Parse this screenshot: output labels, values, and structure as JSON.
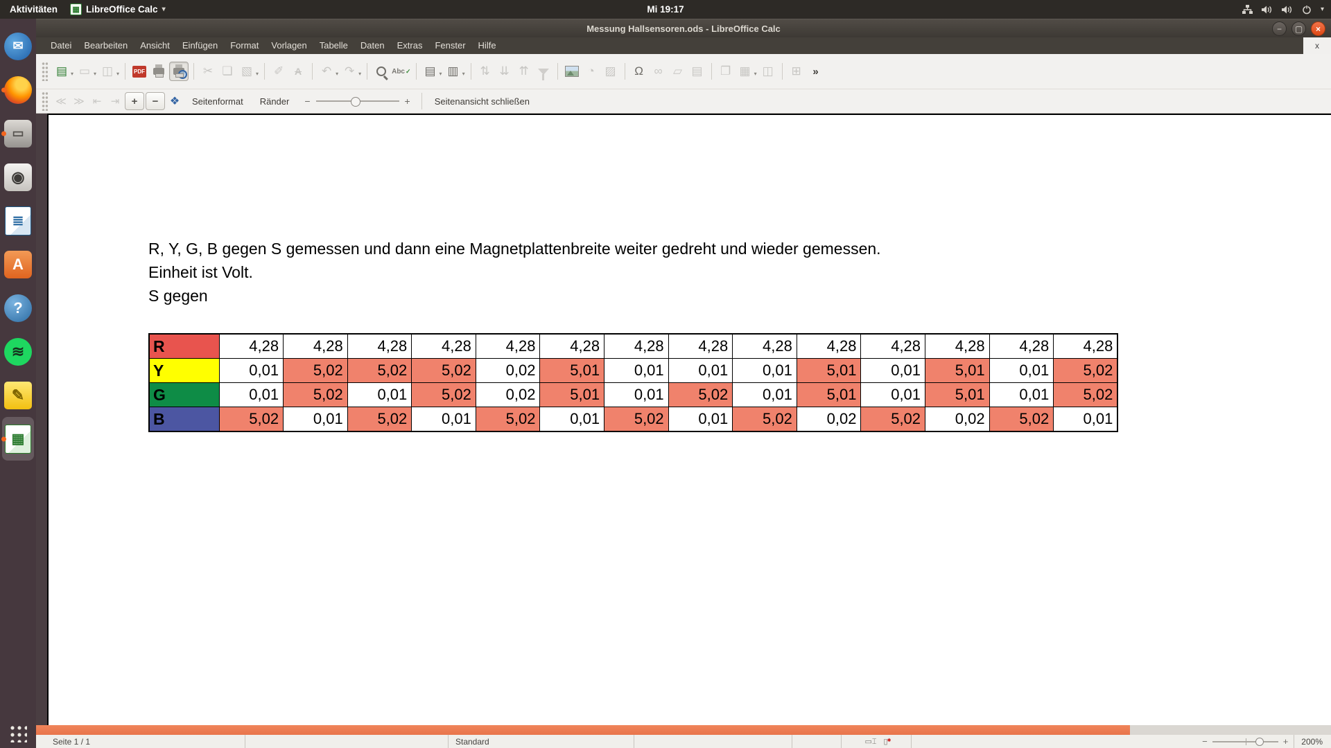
{
  "top_bar": {
    "activities": "Aktivitäten",
    "app_menu": "LibreOffice Calc",
    "clock": "Mi 19:17",
    "tray_icons": [
      "network-icon",
      "volume-icon",
      "volume-icon",
      "power-icon",
      "chevron-down-icon"
    ]
  },
  "window": {
    "title": "Messung Hallsensoren.ods - LibreOffice Calc",
    "controls": {
      "minimize": "−",
      "maximize": "",
      "close": "×"
    }
  },
  "menu_bar": {
    "items": [
      "Datei",
      "Bearbeiten",
      "Ansicht",
      "Einfügen",
      "Format",
      "Vorlagen",
      "Tabelle",
      "Daten",
      "Extras",
      "Fenster",
      "Hilfe"
    ],
    "close_label": "x"
  },
  "toolbar": {
    "icons": [
      {
        "name": "new-document",
        "glyph": "▤",
        "cls": "gi-green",
        "enabled": true,
        "caret": true
      },
      {
        "name": "open-document",
        "glyph": "▭",
        "enabled": false,
        "caret": true
      },
      {
        "name": "save-document",
        "glyph": "◫",
        "enabled": false,
        "caret": true
      },
      {
        "sep": true
      },
      {
        "name": "export-pdf",
        "glyph": "PDF",
        "cls": "gi-pdf",
        "enabled": true
      },
      {
        "name": "print",
        "shape": "printer",
        "enabled": true
      },
      {
        "name": "print-preview",
        "shape": "printer-lens",
        "enabled": true,
        "active": true
      },
      {
        "sep": true
      },
      {
        "name": "cut",
        "glyph": "✂",
        "enabled": false
      },
      {
        "name": "copy",
        "glyph": "❏",
        "enabled": false
      },
      {
        "name": "paste",
        "glyph": "▧",
        "enabled": false,
        "caret": true
      },
      {
        "sep": true
      },
      {
        "name": "clone-formatting",
        "glyph": "✐",
        "enabled": false
      },
      {
        "name": "clear-formatting",
        "glyph": "A",
        "cls": "gi-clearfmt",
        "enabled": false
      },
      {
        "sep": true
      },
      {
        "name": "undo",
        "glyph": "↶",
        "enabled": false,
        "caret": true
      },
      {
        "name": "redo",
        "glyph": "↷",
        "enabled": false,
        "caret": true
      },
      {
        "sep": true
      },
      {
        "name": "find-replace",
        "shape": "magnifier",
        "enabled": true
      },
      {
        "name": "spelling",
        "glyph": "Abc",
        "cls": "gi-abc",
        "enabled": true
      },
      {
        "sep": true
      },
      {
        "name": "insert-row",
        "glyph": "▤",
        "enabled": true,
        "caret": true
      },
      {
        "name": "insert-column",
        "glyph": "▥",
        "enabled": true,
        "caret": true
      },
      {
        "sep": true
      },
      {
        "name": "sort",
        "glyph": "⇅",
        "enabled": false
      },
      {
        "name": "sort-descending",
        "glyph": "⇊",
        "enabled": false
      },
      {
        "name": "sort-ascending",
        "glyph": "⇈",
        "enabled": false
      },
      {
        "name": "autofilter",
        "shape": "funnel",
        "enabled": false
      },
      {
        "sep": true
      },
      {
        "name": "insert-image",
        "shape": "image",
        "enabled": true
      },
      {
        "name": "insert-chart",
        "glyph": "◔",
        "enabled": false
      },
      {
        "name": "pivot-table",
        "glyph": "▨",
        "enabled": false
      },
      {
        "sep": true
      },
      {
        "name": "special-character",
        "glyph": "Ω",
        "enabled": true
      },
      {
        "name": "hyperlink",
        "glyph": "∞",
        "enabled": false
      },
      {
        "name": "comment",
        "glyph": "▱",
        "enabled": false
      },
      {
        "name": "headers-footers",
        "glyph": "▤",
        "enabled": false
      },
      {
        "sep": true
      },
      {
        "name": "print-area",
        "glyph": "❐",
        "enabled": false
      },
      {
        "name": "freeze-rows-columns",
        "glyph": "▦",
        "enabled": false,
        "caret": true
      },
      {
        "name": "split-window",
        "glyph": "◫",
        "enabled": false
      },
      {
        "sep": true
      },
      {
        "name": "sidebar-settings",
        "glyph": "⊞",
        "enabled": false
      },
      {
        "name": "toolbar-overflow",
        "glyph": "»",
        "cls": "gi-overflow",
        "enabled": true
      }
    ]
  },
  "preview_toolbar": {
    "nav": [
      {
        "name": "previous-page",
        "glyph": "≪",
        "enabled": false
      },
      {
        "name": "next-page",
        "glyph": "≫",
        "enabled": false
      },
      {
        "name": "first-page",
        "glyph": "⇤",
        "enabled": false
      },
      {
        "name": "last-page",
        "glyph": "⇥",
        "enabled": false
      },
      {
        "name": "zoom-in",
        "glyph": "+",
        "framed": true,
        "enabled": true
      },
      {
        "name": "zoom-out",
        "glyph": "−",
        "framed": true,
        "enabled": true
      },
      {
        "name": "full-screen",
        "glyph": "❖",
        "blue": true,
        "enabled": true
      }
    ],
    "page_format": "Seitenformat",
    "margins": "Ränder",
    "slider": {
      "minus": "−",
      "plus": "+"
    },
    "close_preview": "Seitenansicht schließen"
  },
  "document": {
    "line1": "R, Y, G, B gegen S gemessen und dann eine Magnetplattenbreite weiter gedreht und wieder gemessen.",
    "line2": "Einheit ist Volt.",
    "line3": "S gegen"
  },
  "table": {
    "rows": [
      {
        "label": "R",
        "label_color": "#e8544e",
        "cells": [
          {
            "v": "4,28",
            "hl": false
          },
          {
            "v": "4,28",
            "hl": false
          },
          {
            "v": "4,28",
            "hl": false
          },
          {
            "v": "4,28",
            "hl": false
          },
          {
            "v": "4,28",
            "hl": false
          },
          {
            "v": "4,28",
            "hl": false
          },
          {
            "v": "4,28",
            "hl": false
          },
          {
            "v": "4,28",
            "hl": false
          },
          {
            "v": "4,28",
            "hl": false
          },
          {
            "v": "4,28",
            "hl": false
          },
          {
            "v": "4,28",
            "hl": false
          },
          {
            "v": "4,28",
            "hl": false
          },
          {
            "v": "4,28",
            "hl": false
          },
          {
            "v": "4,28",
            "hl": false
          }
        ]
      },
      {
        "label": "Y",
        "label_color": "#ffff00",
        "cells": [
          {
            "v": "0,01",
            "hl": false
          },
          {
            "v": "5,02",
            "hl": true
          },
          {
            "v": "5,02",
            "hl": true
          },
          {
            "v": "5,02",
            "hl": true
          },
          {
            "v": "0,02",
            "hl": false
          },
          {
            "v": "5,01",
            "hl": true
          },
          {
            "v": "0,01",
            "hl": false
          },
          {
            "v": "0,01",
            "hl": false
          },
          {
            "v": "0,01",
            "hl": false
          },
          {
            "v": "5,01",
            "hl": true
          },
          {
            "v": "0,01",
            "hl": false
          },
          {
            "v": "5,01",
            "hl": true
          },
          {
            "v": "0,01",
            "hl": false
          },
          {
            "v": "5,02",
            "hl": true
          }
        ]
      },
      {
        "label": "G",
        "label_color": "#0e8c46",
        "cells": [
          {
            "v": "0,01",
            "hl": false
          },
          {
            "v": "5,02",
            "hl": true
          },
          {
            "v": "0,01",
            "hl": false
          },
          {
            "v": "5,02",
            "hl": true
          },
          {
            "v": "0,02",
            "hl": false
          },
          {
            "v": "5,01",
            "hl": true
          },
          {
            "v": "0,01",
            "hl": false
          },
          {
            "v": "5,02",
            "hl": true
          },
          {
            "v": "0,01",
            "hl": false
          },
          {
            "v": "5,01",
            "hl": true
          },
          {
            "v": "0,01",
            "hl": false
          },
          {
            "v": "5,01",
            "hl": true
          },
          {
            "v": "0,01",
            "hl": false
          },
          {
            "v": "5,02",
            "hl": true
          }
        ]
      },
      {
        "label": "B",
        "label_color": "#4c56a2",
        "cells": [
          {
            "v": "5,02",
            "hl": true
          },
          {
            "v": "0,01",
            "hl": false
          },
          {
            "v": "5,02",
            "hl": true
          },
          {
            "v": "0,01",
            "hl": false
          },
          {
            "v": "5,02",
            "hl": true
          },
          {
            "v": "0,01",
            "hl": false
          },
          {
            "v": "5,02",
            "hl": true
          },
          {
            "v": "0,01",
            "hl": false
          },
          {
            "v": "5,02",
            "hl": true
          },
          {
            "v": "0,02",
            "hl": false
          },
          {
            "v": "5,02",
            "hl": true
          },
          {
            "v": "0,02",
            "hl": false
          },
          {
            "v": "5,02",
            "hl": true
          },
          {
            "v": "0,01",
            "hl": false
          }
        ]
      }
    ]
  },
  "status_bar": {
    "page": "Seite 1 / 1",
    "style": "Standard",
    "zoom": "200%",
    "icons": [
      "selection-mode-icon",
      "document-modified-icon"
    ]
  },
  "dock": {
    "items": [
      {
        "name": "thunderbird",
        "glyph": "✉",
        "running": false,
        "active": false
      },
      {
        "name": "firefox",
        "glyph": "",
        "running": true,
        "active": false
      },
      {
        "name": "files",
        "glyph": "▭",
        "running": true,
        "active": false
      },
      {
        "name": "rhythmbox",
        "glyph": "◉",
        "running": false,
        "active": false
      },
      {
        "name": "libreoffice-writer",
        "glyph": "≣",
        "running": false,
        "active": false
      },
      {
        "name": "ubuntu-software",
        "glyph": "A",
        "running": false,
        "active": false
      },
      {
        "name": "help",
        "glyph": "?",
        "running": false,
        "active": false
      },
      {
        "name": "spotify",
        "glyph": "≋",
        "running": false,
        "active": false
      },
      {
        "name": "notes",
        "glyph": "✎",
        "running": false,
        "active": false
      },
      {
        "name": "libreoffice-calc",
        "glyph": "▦",
        "running": true,
        "active": true
      }
    ]
  },
  "colors": {
    "accent_orange": "#e95420",
    "cell_highlight": "#f0826c",
    "scrollbar_thumb": "#ee7a50",
    "row_label_r": "#e8544e",
    "row_label_y": "#ffff00",
    "row_label_g": "#0e8c46",
    "row_label_b": "#4c56a2"
  }
}
